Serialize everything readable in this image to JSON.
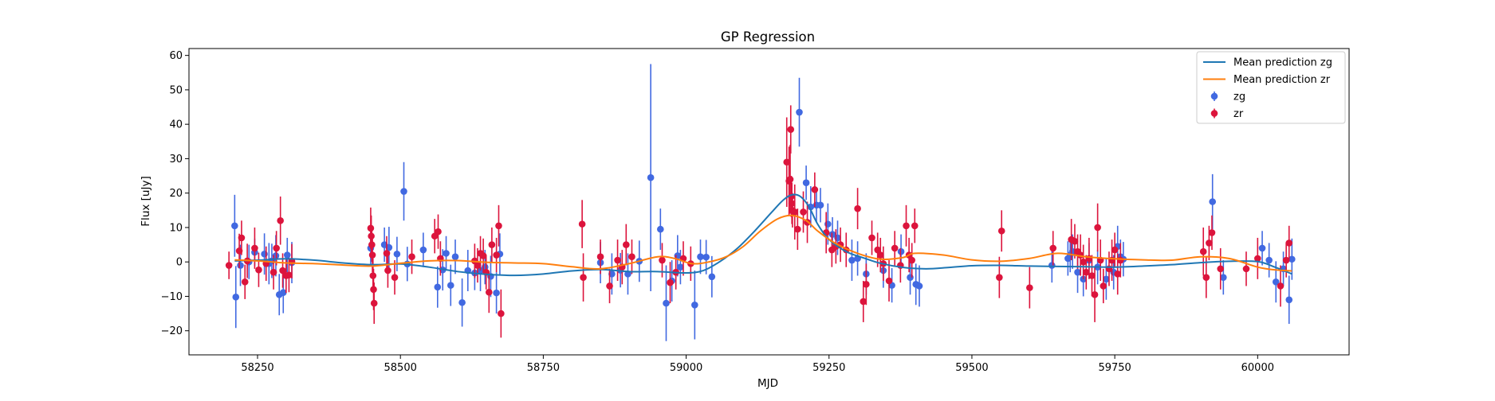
{
  "chart_data": {
    "type": "scatter",
    "title": "GP Regression",
    "xlabel": "MJD",
    "ylabel": "Flux [uJy]",
    "xlim": [
      58130,
      60160
    ],
    "ylim": [
      -27,
      62
    ],
    "xticks": [
      58250,
      58500,
      58750,
      59000,
      59250,
      59500,
      59750,
      60000
    ],
    "yticks": [
      -20,
      -10,
      0,
      10,
      20,
      30,
      40,
      50,
      60
    ],
    "grid": false,
    "legend_position": "top-right",
    "lines": [
      {
        "name": "Mean prediction zg",
        "color": "#1f77b4",
        "x": [
          58210,
          58250,
          58300,
          58350,
          58400,
          58450,
          58500,
          58550,
          58600,
          58650,
          58700,
          58750,
          58800,
          58850,
          58900,
          58950,
          59000,
          59030,
          59060,
          59090,
          59120,
          59150,
          59170,
          59185,
          59200,
          59215,
          59230,
          59250,
          59280,
          59310,
          59340,
          59380,
          59420,
          59460,
          59500,
          59550,
          59600,
          59650,
          59700,
          59750,
          59800,
          59850,
          59900,
          59950,
          60000,
          60030,
          60060
        ],
        "y": [
          0.3,
          0.5,
          0.9,
          0.5,
          -0.3,
          -0.8,
          -0.6,
          -1.5,
          -2.8,
          -3.6,
          -3.9,
          -3.5,
          -2.6,
          -2.2,
          -2.8,
          -2.8,
          -3.2,
          -2.5,
          0.2,
          4,
          9,
          14.5,
          18,
          19.5,
          19,
          16,
          11,
          6.5,
          3,
          1.2,
          -0.4,
          -1.6,
          -2,
          -1.6,
          -1.1,
          -1,
          -1.2,
          -1.3,
          -1.4,
          -1.5,
          -1.2,
          -0.8,
          -0.2,
          0.2,
          0.1,
          -1.5,
          -3.5
        ]
      },
      {
        "name": "Mean prediction zr",
        "color": "#ff7f0e",
        "x": [
          58210,
          58250,
          58300,
          58350,
          58400,
          58450,
          58500,
          58550,
          58600,
          58650,
          58700,
          58750,
          58800,
          58850,
          58900,
          58950,
          58980,
          59010,
          59040,
          59070,
          59100,
          59130,
          59160,
          59185,
          59210,
          59230,
          59260,
          59300,
          59340,
          59380,
          59400,
          59450,
          59500,
          59550,
          59600,
          59650,
          59700,
          59750,
          59800,
          59850,
          59900,
          59950,
          60000,
          60030,
          60060
        ],
        "y": [
          0.6,
          0.3,
          -0.3,
          -0.5,
          -0.9,
          -1.2,
          -0.4,
          0.3,
          0.4,
          -0.1,
          -0.3,
          -0.5,
          -1.4,
          -2,
          -0.5,
          1.5,
          1,
          -0.5,
          0,
          1.5,
          4.5,
          9,
          12.5,
          13.5,
          12,
          9,
          5.5,
          2.5,
          0.8,
          1.3,
          2.5,
          2,
          0.6,
          0.2,
          1,
          2.5,
          1.5,
          0.9,
          0.6,
          0.5,
          1.5,
          1,
          -1.5,
          -2.3,
          -2.6
        ]
      }
    ],
    "series": [
      {
        "name": "zg",
        "color": "#4169e1",
        "x": [
          58210,
          58212,
          58220,
          58235,
          58245,
          58262,
          58270,
          58275,
          58282,
          58288,
          58295,
          58302,
          58310,
          58448,
          58472,
          58480,
          58494,
          58506,
          58512,
          58540,
          58565,
          58574,
          58580,
          58588,
          58596,
          58608,
          58618,
          58630,
          58640,
          58648,
          58658,
          58668,
          58674,
          58850,
          58870,
          58885,
          58898,
          58918,
          58938,
          58955,
          58965,
          58975,
          58985,
          58990,
          59015,
          59025,
          59035,
          59045,
          59198,
          59210,
          59218,
          59228,
          59235,
          59248,
          59256,
          59265,
          59290,
          59300,
          59315,
          59345,
          59360,
          59376,
          59392,
          59402,
          59408,
          59640,
          59668,
          59672,
          59676,
          59685,
          59695,
          59705,
          59720,
          59735,
          59748,
          59755,
          59760,
          59765,
          59921,
          59940,
          60008,
          60020,
          60032,
          60045,
          60055,
          60060
        ],
        "y": [
          10.5,
          -10.2,
          -1,
          0,
          2.8,
          2.3,
          -0.5,
          0.3,
          1.8,
          -9.5,
          -8.9,
          2,
          -0.2,
          4,
          5,
          4.2,
          2.3,
          20.5,
          -0.6,
          3.5,
          -7.3,
          -2.3,
          2.5,
          -6.8,
          1.5,
          -11.8,
          -2.5,
          -3.2,
          -2.5,
          -1.5,
          -4.2,
          -9,
          2.3,
          -0.2,
          -3.5,
          -2.4,
          -3.5,
          0.2,
          24.5,
          9.5,
          -12,
          -5.5,
          1.8,
          -1.5,
          -12.5,
          1.5,
          1.4,
          -4.3,
          43.5,
          23,
          16,
          16.5,
          16.5,
          11,
          8,
          7,
          0.5,
          1,
          -3.5,
          -2.5,
          -6.8,
          3,
          -4.5,
          -6.5,
          -7,
          -1,
          1,
          2,
          3,
          -3,
          -5,
          0.5,
          -1.5,
          -5,
          -3,
          4.5,
          1.5,
          0.8,
          17.5,
          -4.5,
          4,
          0.5,
          -5.8,
          -2,
          -11,
          0.8
        ],
        "err": [
          9,
          9,
          6,
          5,
          4,
          6,
          6,
          5,
          6,
          6,
          6,
          5,
          6,
          5,
          5,
          6,
          5,
          8.5,
          5,
          5,
          6,
          6,
          5,
          6,
          5,
          7,
          6,
          5,
          6,
          5,
          6,
          6,
          6,
          6,
          6,
          5,
          6,
          6,
          33,
          6,
          11,
          6,
          6,
          5,
          10,
          5,
          5,
          6,
          10,
          5,
          6,
          5,
          5,
          6,
          5,
          5,
          6,
          5,
          6,
          5,
          5,
          5,
          5,
          6,
          6,
          5,
          5,
          5,
          5,
          6,
          5,
          5,
          5,
          6,
          5,
          6,
          5,
          5,
          8,
          5,
          5,
          5,
          6,
          5,
          7,
          6
        ]
      },
      {
        "name": "zr",
        "color": "#dc143c",
        "x": [
          58200,
          58218,
          58222,
          58228,
          58232,
          58245,
          58252,
          58265,
          58278,
          58283,
          58290,
          58294,
          58300,
          58305,
          58310,
          58448,
          58449,
          58450,
          58451,
          58452,
          58453,
          58454,
          58476,
          58478,
          58490,
          58520,
          58560,
          58566,
          58570,
          58630,
          58635,
          58640,
          58645,
          58650,
          58655,
          58660,
          58668,
          58672,
          58676,
          58818,
          58820,
          58850,
          58866,
          58880,
          58888,
          58895,
          58905,
          58958,
          58972,
          58982,
          58995,
          59008,
          59176,
          59180,
          59182,
          59183,
          59184,
          59185,
          59186,
          59190,
          59195,
          59205,
          59212,
          59225,
          59245,
          59255,
          59262,
          59270,
          59280,
          59300,
          59310,
          59315,
          59325,
          59335,
          59340,
          59345,
          59355,
          59365,
          59375,
          59385,
          59390,
          59395,
          59400,
          59548,
          59552,
          59601,
          59642,
          59674,
          59680,
          59685,
          59690,
          59695,
          59700,
          59705,
          59710,
          59715,
          59720,
          59725,
          59730,
          59740,
          59745,
          59750,
          59755,
          59760,
          59905,
          59910,
          59915,
          59920,
          59935,
          59980,
          60000,
          60040,
          60050,
          60055
        ],
        "y": [
          -1,
          3.2,
          7,
          -5.8,
          0.3,
          4,
          -2.3,
          -0.5,
          -3,
          4,
          12,
          -2.5,
          -4,
          -3.8,
          0.2,
          9.8,
          7.5,
          5,
          2,
          -4,
          -8,
          -12,
          2.5,
          -2.5,
          -4.5,
          1.5,
          7.5,
          8.8,
          1,
          0.3,
          -1,
          2.5,
          1.8,
          -3,
          -8.8,
          5,
          2,
          10.5,
          -15,
          11,
          -4.5,
          1.5,
          -7,
          0.5,
          -1.5,
          5,
          1.5,
          0.5,
          -6,
          -3,
          1,
          -0.5,
          29,
          23.5,
          24,
          38.5,
          19,
          17,
          15,
          14.5,
          9.5,
          14.5,
          11.5,
          21,
          8.5,
          3.5,
          4.5,
          5,
          3.5,
          15.5,
          -11.5,
          -6.5,
          7,
          3.5,
          2,
          -0.5,
          -5.5,
          4,
          -1,
          10.5,
          2,
          0.5,
          10.5,
          -4.5,
          9,
          -7.5,
          4,
          6.5,
          6,
          3,
          2,
          0,
          -3,
          1,
          -4,
          -9.5,
          10,
          0.5,
          -7,
          -2,
          0.5,
          3.5,
          -3.5,
          0.5,
          3,
          -4.5,
          5.5,
          8.5,
          -2,
          -2,
          1,
          -7,
          0.5,
          5.5
        ],
        "err": [
          4,
          5,
          5,
          5,
          5,
          6,
          5,
          5,
          5,
          5,
          7,
          5,
          5,
          5,
          5,
          6,
          6,
          5,
          5,
          5,
          6,
          6,
          5,
          5,
          5,
          5,
          5,
          5,
          5,
          5,
          5,
          5,
          5,
          5,
          6,
          5,
          5,
          6,
          7,
          7,
          7,
          5,
          5,
          6,
          5,
          6,
          5,
          5,
          6,
          5,
          5,
          5,
          13,
          10,
          10,
          7,
          6,
          6,
          5,
          8,
          6,
          6,
          6,
          5,
          6,
          5,
          5,
          5,
          5,
          6,
          6,
          6,
          5,
          5,
          5,
          5,
          6,
          5,
          5,
          6,
          5,
          5,
          5,
          6,
          6,
          6,
          5,
          6,
          5,
          5,
          6,
          5,
          5,
          6,
          6,
          8,
          7,
          6,
          5,
          5,
          6,
          5,
          6,
          5,
          7,
          6,
          5,
          5,
          6,
          5,
          6,
          6,
          5,
          5
        ]
      }
    ]
  }
}
